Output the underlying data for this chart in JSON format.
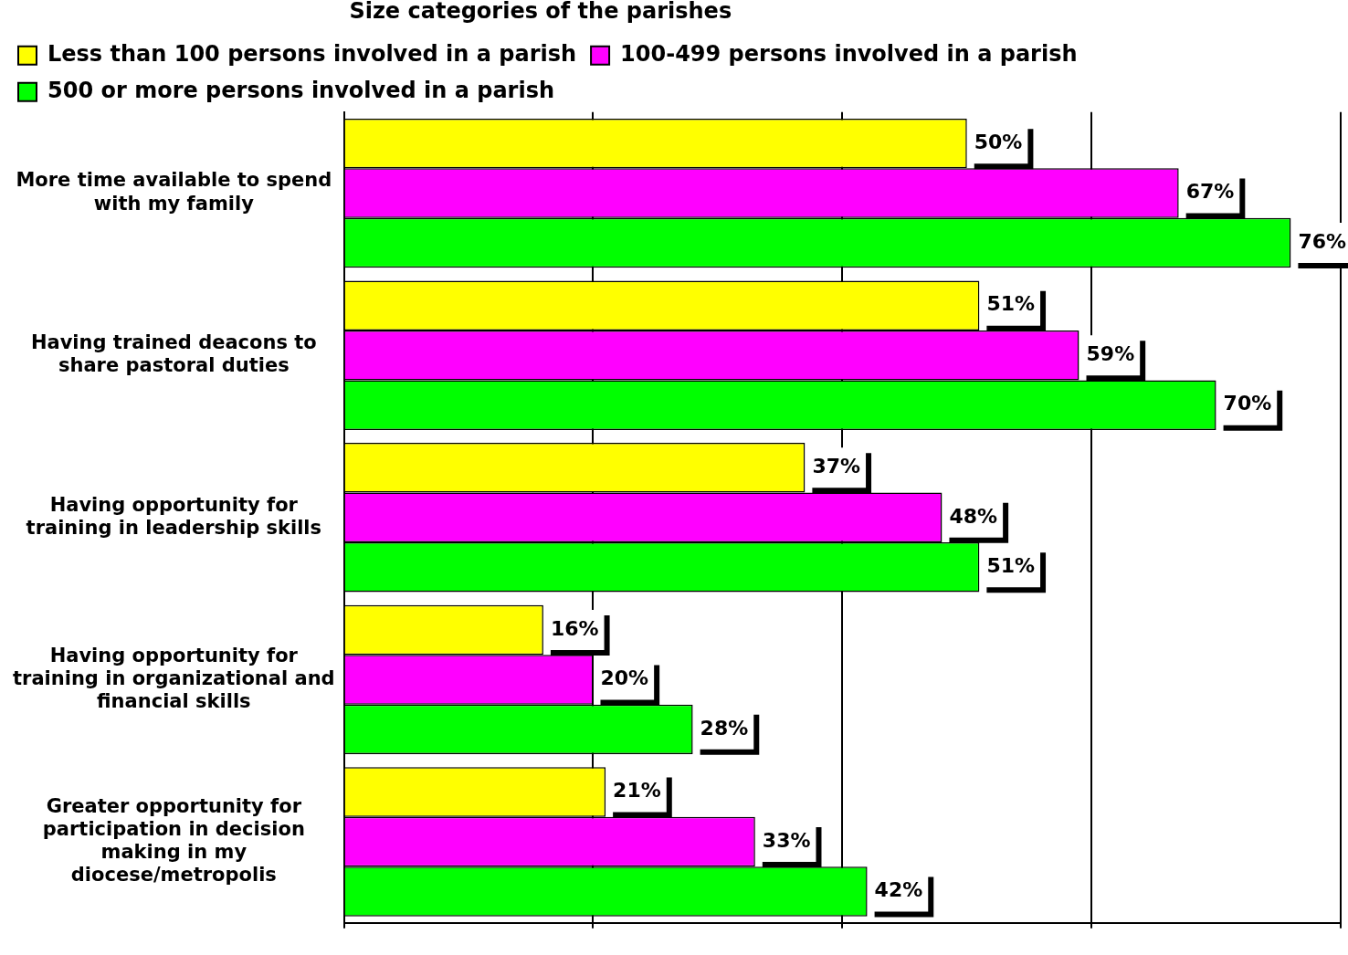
{
  "chart_data": {
    "type": "bar",
    "orientation": "horizontal",
    "legend_title": "Size categories of the parishes",
    "legend": "top",
    "grid": "x",
    "tick_labels": "y",
    "categories": [
      "More time available to spend with my family",
      "Having trained deacons to share pastoral duties",
      "Having opportunity for training in leadership skills",
      "Having opportunity for training in organizational and financial skills",
      "Greater opportunity for participation in decision making in my diocese/metropolis"
    ],
    "xlim": [
      0,
      80
    ],
    "xticks": [
      {
        "value": 0,
        "label": null
      },
      {
        "value": 20,
        "label": null
      },
      {
        "value": 40,
        "label": null
      },
      {
        "value": 60,
        "label": null
      },
      {
        "value": 80,
        "label": null
      }
    ],
    "series": [
      {
        "name": "Less than 100 persons involved in a parish",
        "color": "#ffff00",
        "values": [
          50,
          51,
          37,
          16,
          21
        ],
        "value_labels": [
          "50%",
          "51%",
          "37%",
          "16%",
          "21%"
        ]
      },
      {
        "name": "100-499 persons involved in a parish",
        "color": "#ff00ff",
        "values": [
          67,
          59,
          48,
          20,
          33
        ],
        "value_labels": [
          "67%",
          "59%",
          "48%",
          "20%",
          "33%"
        ]
      },
      {
        "name": "500 or more persons involved in a parish",
        "color": "#00ff00",
        "values": [
          76,
          70,
          51,
          28,
          42
        ],
        "value_labels": [
          "76%",
          "70%",
          "51%",
          "28%",
          "42%"
        ]
      }
    ]
  }
}
